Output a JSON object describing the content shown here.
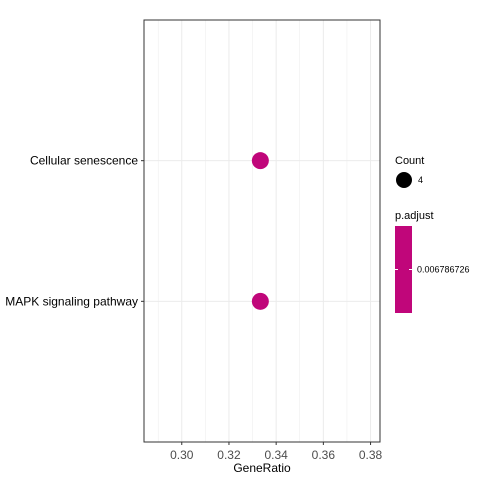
{
  "chart_data": {
    "type": "scatter",
    "title": "",
    "xlabel": "GeneRatio",
    "ylabel": "",
    "xlim": [
      0.284,
      0.384
    ],
    "x_ticks": [
      "0.30",
      "0.32",
      "0.34",
      "0.36",
      "0.38"
    ],
    "categories": [
      "Cellular senescence",
      "MAPK signaling pathway"
    ],
    "points": [
      {
        "category": "Cellular senescence",
        "x": 0.3333,
        "count": 4,
        "p_adjust": 0.006786726
      },
      {
        "category": "MAPK signaling pathway",
        "x": 0.3333,
        "count": 4,
        "p_adjust": 0.006786726
      }
    ],
    "grid": true,
    "legend_position": "right",
    "point_color": "#c0067a",
    "legend": {
      "count_title": "Count",
      "count_label": "4",
      "padjust_title": "p.adjust",
      "padjust_label": "0.006786726"
    }
  }
}
